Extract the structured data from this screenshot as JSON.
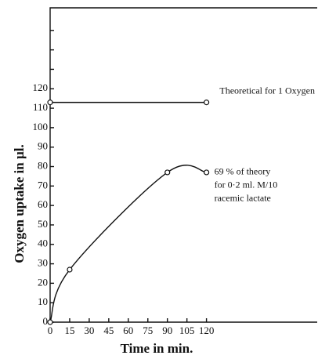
{
  "chart_data": {
    "type": "line",
    "xlabel": "Time in min.",
    "ylabel": "Oxygen uptake in µl.",
    "xlim": [
      0,
      205
    ],
    "ylim": [
      0,
      160
    ],
    "xticks": [
      0,
      15,
      30,
      45,
      60,
      75,
      90,
      105,
      120
    ],
    "yticks": [
      0,
      10,
      20,
      30,
      40,
      50,
      60,
      70,
      80,
      90,
      100,
      110,
      120
    ],
    "minor_yticks": [
      130,
      140,
      150
    ],
    "series": [
      {
        "name": "Theoretical for 1 Oxygen",
        "color": "#111",
        "x": [
          0,
          120
        ],
        "values": [
          113,
          113
        ]
      },
      {
        "name": "69 % of theory",
        "color": "#111",
        "x": [
          0,
          15,
          90,
          120
        ],
        "values": [
          0,
          27,
          77,
          77
        ]
      }
    ],
    "annotations": [
      "for 0·2 ml. M/10",
      "racemic lactate"
    ]
  }
}
